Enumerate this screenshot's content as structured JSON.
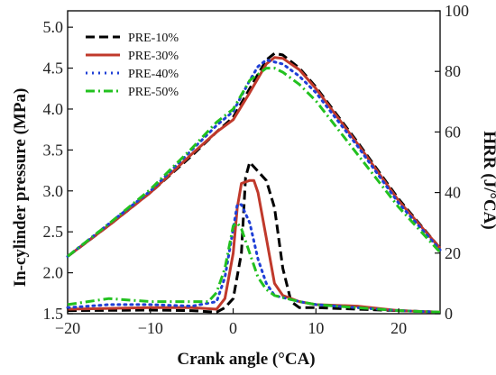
{
  "chart_data": {
    "type": "line",
    "xlabel": "Crank angle (°CA)",
    "ylabel_left": "In-cylinder pressure (MPa)",
    "ylabel_right": "HRR (J/°CA)",
    "xlim": [
      -20,
      25
    ],
    "ylim_left": [
      1.5,
      5.2
    ],
    "ylim_right": [
      0,
      100
    ],
    "x_ticks": [
      "-20",
      "-10",
      "0",
      "10",
      "20"
    ],
    "y_left_ticks": [
      "1.5",
      "2.0",
      "2.5",
      "3.0",
      "3.5",
      "4.0",
      "4.5",
      "5.0"
    ],
    "y_right_ticks": [
      "0",
      "20",
      "40",
      "60",
      "80",
      "100"
    ],
    "legend_position": "top-left",
    "legend": [
      "PRE-10%",
      "PRE-30%",
      "PRE-40%",
      "PRE-50%"
    ],
    "series": [
      {
        "name": "PRE-10%",
        "color": "#000000",
        "dash": "dash",
        "pressure": [
          [
            -20,
            2.2
          ],
          [
            -15,
            2.58
          ],
          [
            -10,
            2.98
          ],
          [
            -5,
            3.43
          ],
          [
            -2,
            3.72
          ],
          [
            0,
            3.9
          ],
          [
            2,
            4.25
          ],
          [
            4,
            4.6
          ],
          [
            5,
            4.68
          ],
          [
            6,
            4.66
          ],
          [
            8,
            4.5
          ],
          [
            10,
            4.27
          ],
          [
            15,
            3.6
          ],
          [
            20,
            2.9
          ],
          [
            25,
            2.3
          ]
        ],
        "hrr": [
          [
            -20,
            1
          ],
          [
            -10,
            1.2
          ],
          [
            -5,
            1
          ],
          [
            -2,
            0.5
          ],
          [
            -1,
            2
          ],
          [
            0,
            5
          ],
          [
            1,
            20
          ],
          [
            1.5,
            45
          ],
          [
            2,
            50
          ],
          [
            3,
            47
          ],
          [
            4,
            44
          ],
          [
            5,
            35
          ],
          [
            6,
            15
          ],
          [
            7,
            4
          ],
          [
            8,
            2
          ],
          [
            10,
            2
          ],
          [
            15,
            1.5
          ],
          [
            20,
            1
          ],
          [
            25,
            0.5
          ]
        ]
      },
      {
        "name": "PRE-30%",
        "color": "#c0392b",
        "dash": "solid",
        "pressure": [
          [
            -20,
            2.2
          ],
          [
            -15,
            2.58
          ],
          [
            -10,
            2.98
          ],
          [
            -5,
            3.45
          ],
          [
            -2,
            3.72
          ],
          [
            0,
            3.87
          ],
          [
            2,
            4.2
          ],
          [
            4,
            4.55
          ],
          [
            5,
            4.63
          ],
          [
            6,
            4.62
          ],
          [
            8,
            4.48
          ],
          [
            10,
            4.25
          ],
          [
            15,
            3.58
          ],
          [
            20,
            2.88
          ],
          [
            25,
            2.3
          ]
        ],
        "hrr": [
          [
            -20,
            1.5
          ],
          [
            -10,
            2
          ],
          [
            -5,
            2
          ],
          [
            -2,
            1.5
          ],
          [
            -1,
            5
          ],
          [
            0,
            20
          ],
          [
            0.5,
            35
          ],
          [
            1,
            43
          ],
          [
            2,
            44
          ],
          [
            2.5,
            44
          ],
          [
            3,
            40
          ],
          [
            4,
            25
          ],
          [
            5,
            10
          ],
          [
            6,
            6
          ],
          [
            8,
            4
          ],
          [
            10,
            3
          ],
          [
            15,
            2.5
          ],
          [
            20,
            1
          ],
          [
            25,
            0.5
          ]
        ]
      },
      {
        "name": "PRE-40%",
        "color": "#1f3fd6",
        "dash": "dot",
        "pressure": [
          [
            -20,
            2.2
          ],
          [
            -15,
            2.6
          ],
          [
            -10,
            3.0
          ],
          [
            -5,
            3.5
          ],
          [
            -2,
            3.8
          ],
          [
            0,
            3.97
          ],
          [
            2,
            4.35
          ],
          [
            3,
            4.52
          ],
          [
            4,
            4.6
          ],
          [
            6,
            4.55
          ],
          [
            8,
            4.4
          ],
          [
            10,
            4.2
          ],
          [
            15,
            3.55
          ],
          [
            20,
            2.85
          ],
          [
            25,
            2.28
          ]
        ],
        "hrr": [
          [
            -20,
            2
          ],
          [
            -15,
            3
          ],
          [
            -10,
            3
          ],
          [
            -5,
            2.5
          ],
          [
            -2,
            4
          ],
          [
            -1,
            12
          ],
          [
            0,
            28
          ],
          [
            0.5,
            36
          ],
          [
            1,
            36
          ],
          [
            2,
            30
          ],
          [
            3,
            18
          ],
          [
            4,
            10
          ],
          [
            5,
            6
          ],
          [
            8,
            4
          ],
          [
            10,
            3
          ],
          [
            15,
            2
          ],
          [
            20,
            1
          ],
          [
            25,
            0.5
          ]
        ]
      },
      {
        "name": "PRE-50%",
        "color": "#22c11f",
        "dash": "dashdot",
        "pressure": [
          [
            -20,
            2.2
          ],
          [
            -15,
            2.6
          ],
          [
            -10,
            3.02
          ],
          [
            -5,
            3.52
          ],
          [
            -2,
            3.84
          ],
          [
            0,
            4.0
          ],
          [
            2,
            4.35
          ],
          [
            4,
            4.5
          ],
          [
            5,
            4.5
          ],
          [
            6,
            4.45
          ],
          [
            8,
            4.3
          ],
          [
            10,
            4.1
          ],
          [
            15,
            3.45
          ],
          [
            20,
            2.8
          ],
          [
            25,
            2.25
          ]
        ],
        "hrr": [
          [
            -20,
            3
          ],
          [
            -15,
            5
          ],
          [
            -10,
            4
          ],
          [
            -5,
            4
          ],
          [
            -3,
            4
          ],
          [
            -2,
            7
          ],
          [
            -1,
            15
          ],
          [
            0,
            29
          ],
          [
            0.5,
            30
          ],
          [
            1,
            28
          ],
          [
            2,
            20
          ],
          [
            3,
            12
          ],
          [
            4,
            8
          ],
          [
            5,
            6
          ],
          [
            8,
            4
          ],
          [
            10,
            3
          ],
          [
            15,
            2
          ],
          [
            20,
            1
          ],
          [
            25,
            0.5
          ]
        ]
      }
    ]
  }
}
